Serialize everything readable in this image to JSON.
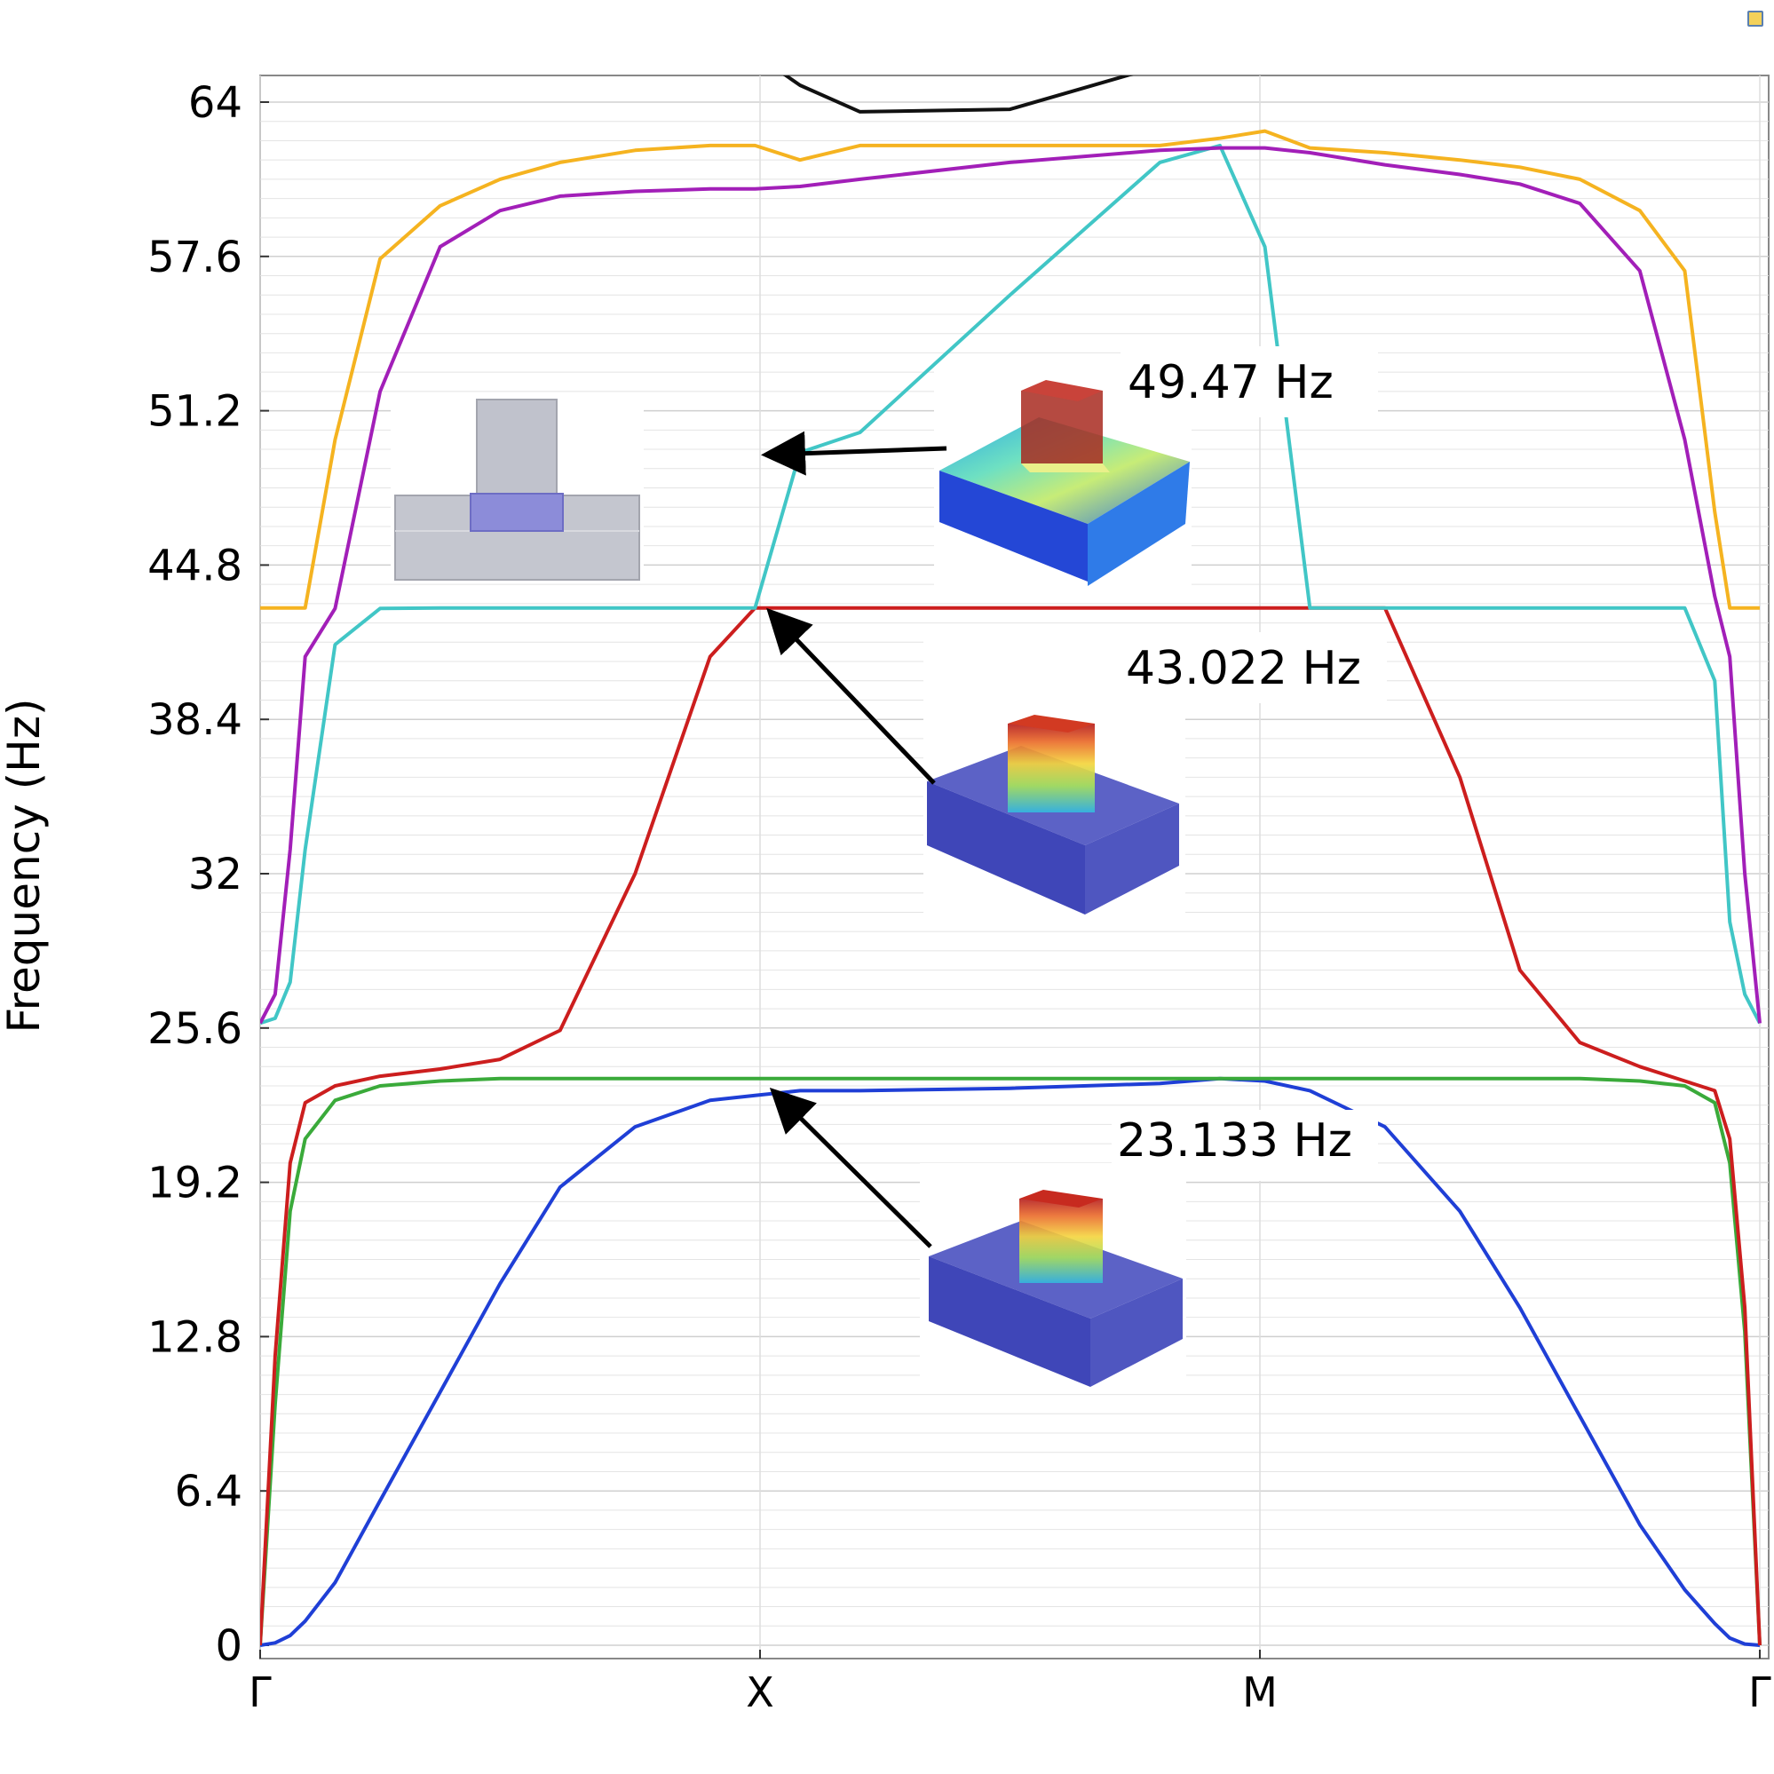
{
  "chart_data": {
    "type": "line",
    "title": "",
    "xlabel": "",
    "ylabel": "Frequency (Hz)",
    "ylim": [
      0,
      64
    ],
    "yticks": [
      "0",
      "6.4",
      "12.8",
      "19.2",
      "25.6",
      "32",
      "38.4",
      "44.8",
      "51.2",
      "57.6",
      "64"
    ],
    "xticks": [
      "Γ",
      "X",
      "M",
      "Γ"
    ],
    "grid": true,
    "x_positions": [
      0,
      0.01,
      0.02,
      0.03,
      0.05,
      0.08,
      0.12,
      0.16,
      0.2,
      0.25,
      0.3,
      0.33,
      0.36,
      0.4,
      0.5,
      0.6,
      0.64,
      0.67,
      0.7,
      0.75,
      0.8,
      0.84,
      0.88,
      0.92,
      0.95,
      0.97,
      0.98,
      0.99,
      1.0
    ],
    "series": [
      {
        "color": "#1f3fd6",
        "values": [
          0,
          0.1,
          0.4,
          1,
          2.6,
          6,
          10.5,
          15,
          19,
          21.5,
          22.6,
          22.8,
          23.0,
          23.0,
          23.1,
          23.3,
          23.5,
          23.4,
          23.0,
          21.5,
          18,
          14,
          9.5,
          5,
          2.3,
          0.9,
          0.3,
          0.05,
          0
        ]
      },
      {
        "color": "#3aaa3a",
        "values": [
          0,
          10,
          18,
          21,
          22.6,
          23.2,
          23.4,
          23.5,
          23.5,
          23.5,
          23.5,
          23.5,
          23.5,
          23.5,
          23.5,
          23.5,
          23.5,
          23.5,
          23.5,
          23.5,
          23.5,
          23.5,
          23.5,
          23.4,
          23.2,
          22.5,
          20,
          13,
          0
        ]
      },
      {
        "color": "#cc1e1e",
        "values": [
          0,
          12,
          20,
          22.5,
          23.2,
          23.6,
          23.9,
          24.3,
          25.5,
          32,
          41,
          43.02,
          43.02,
          43.02,
          43.02,
          43.02,
          43.02,
          43.02,
          43.02,
          43.02,
          36,
          28,
          25,
          24,
          23.4,
          23,
          21,
          14,
          0
        ]
      },
      {
        "color": "#41c6c6",
        "values": [
          25.8,
          26,
          27.5,
          33,
          41.5,
          43.0,
          43.02,
          43.02,
          43.02,
          43.02,
          43.02,
          43.02,
          49.47,
          50.3,
          56,
          61.5,
          62.2,
          58,
          43.02,
          43.02,
          43.02,
          43.02,
          43.02,
          43.02,
          43.02,
          40,
          30,
          27,
          25.8
        ]
      },
      {
        "color": "#a21fb8",
        "values": [
          25.8,
          27,
          33,
          41,
          43.0,
          52,
          58,
          59.5,
          60.1,
          60.3,
          60.4,
          60.4,
          60.5,
          60.8,
          61.5,
          62.0,
          62.1,
          62.1,
          61.9,
          61.4,
          61.0,
          60.6,
          59.8,
          57,
          50,
          43.5,
          41,
          32,
          25.8
        ]
      },
      {
        "color": "#f5b320",
        "values": [
          43.02,
          43.02,
          43.02,
          43.02,
          50,
          57.5,
          59.7,
          60.8,
          61.5,
          62.0,
          62.2,
          62.2,
          61.6,
          62.2,
          62.2,
          62.2,
          62.5,
          62.8,
          62.1,
          61.9,
          61.6,
          61.3,
          60.8,
          59.5,
          57,
          47,
          43.02,
          43.02,
          43.02
        ]
      },
      {
        "color": "#111111",
        "values": [
          null,
          null,
          null,
          null,
          null,
          null,
          null,
          null,
          null,
          null,
          null,
          66,
          64.7,
          63.6,
          63.7,
          65.5,
          null,
          null,
          null,
          null,
          null,
          null,
          null,
          null,
          null,
          null,
          null,
          null,
          null
        ]
      }
    ],
    "annotations": [
      {
        "label": "49.47 Hz",
        "x": 0.336,
        "y": 49.47
      },
      {
        "label": "43.022 Hz",
        "x": 0.336,
        "y": 43.022
      },
      {
        "label": "23.133 Hz",
        "x": 0.336,
        "y": 23.133
      }
    ]
  }
}
